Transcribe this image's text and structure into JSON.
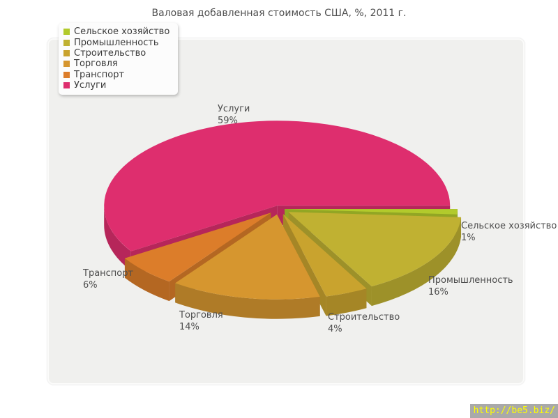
{
  "title": "Валовая добавленная стоимость США, %, 2011 г.",
  "watermark": {
    "text": "http://be5.biz/"
  },
  "chart_data": {
    "type": "pie",
    "title": "Валовая добавленная стоимость США, %, 2011 г.",
    "style": "3d-exploded",
    "direction": "clockwise",
    "start_angle_deg": 0,
    "legend_position": "top-left",
    "unit": "%",
    "slices": [
      {
        "key": "agriculture",
        "label": "Сельское хозяйство",
        "value": 1,
        "pct_label": "1%",
        "color": "#b2ca2c"
      },
      {
        "key": "industry",
        "label": "Промышленность",
        "value": 16,
        "pct_label": "16%",
        "color": "#c0b132"
      },
      {
        "key": "construction",
        "label": "Строительство",
        "value": 4,
        "pct_label": "4%",
        "color": "#c9a32e"
      },
      {
        "key": "trade",
        "label": "Торговля",
        "value": 14,
        "pct_label": "14%",
        "color": "#d6962f"
      },
      {
        "key": "transport",
        "label": "Транспорт",
        "value": 6,
        "pct_label": "6%",
        "color": "#dc7d2a"
      },
      {
        "key": "services",
        "label": "Услуги",
        "value": 59,
        "pct_label": "59%",
        "color": "#de2e6e"
      }
    ]
  }
}
